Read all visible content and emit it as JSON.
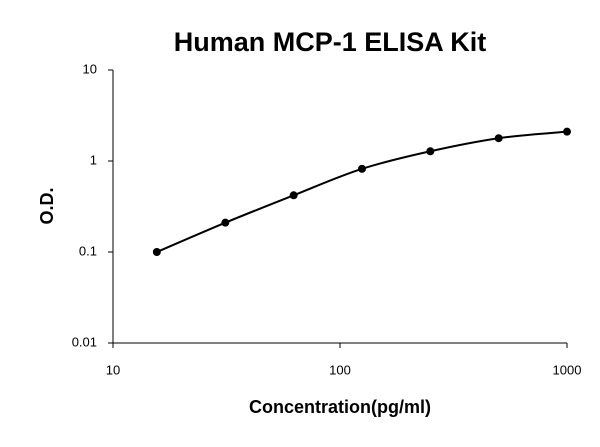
{
  "chart_data": {
    "type": "line",
    "title": "Human MCP-1 ELISA Kit",
    "x_label": "Concentration(pg/ml)",
    "y_label": "O.D.",
    "x": [
      15.6,
      31.25,
      62.5,
      125,
      250,
      500,
      1000
    ],
    "values": [
      0.1,
      0.21,
      0.42,
      0.82,
      1.28,
      1.78,
      2.1
    ],
    "color": "#000000",
    "xlim": [
      10,
      1000
    ],
    "ylim": [
      0.01,
      10
    ],
    "xticks": [
      10,
      100,
      1000
    ],
    "yticks": [
      0.01,
      0.1,
      1,
      10
    ],
    "xscale": "log",
    "yscale": "log",
    "grid": false,
    "markers": true
  }
}
